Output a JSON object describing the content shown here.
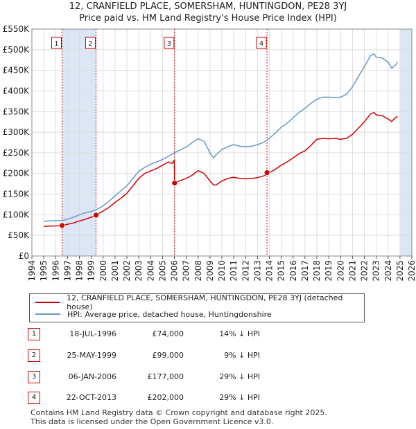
{
  "title_line1": "12, CRANFIELD PLACE, SOMERSHAM, HUNTINGDON, PE28 3YJ",
  "title_line2": "Price paid vs. HM Land Registry's House Price Index (HPI)",
  "colors": {
    "property": "#cc0000",
    "hpi": "#6699cc",
    "shade": "#dde6f5",
    "grid": "#dddddd"
  },
  "chart_data": {
    "type": "line",
    "y_ticks": [
      {
        "v": 0,
        "label": "£0"
      },
      {
        "v": 50000,
        "label": "£50K"
      },
      {
        "v": 100000,
        "label": "£100K"
      },
      {
        "v": 150000,
        "label": "£150K"
      },
      {
        "v": 200000,
        "label": "£200K"
      },
      {
        "v": 250000,
        "label": "£250K"
      },
      {
        "v": 300000,
        "label": "£300K"
      },
      {
        "v": 350000,
        "label": "£350K"
      },
      {
        "v": 400000,
        "label": "£400K"
      },
      {
        "v": 450000,
        "label": "£450K"
      },
      {
        "v": 500000,
        "label": "£500K"
      },
      {
        "v": 550000,
        "label": "£550K"
      }
    ],
    "x_ticks": [
      1994,
      1995,
      1996,
      1997,
      1998,
      1999,
      2000,
      2001,
      2002,
      2003,
      2004,
      2005,
      2006,
      2007,
      2008,
      2009,
      2010,
      2011,
      2012,
      2013,
      2014,
      2015,
      2016,
      2017,
      2018,
      2019,
      2020,
      2021,
      2022,
      2023,
      2024,
      2025,
      2026
    ],
    "xlim": [
      1994,
      2026
    ],
    "ylim": [
      0,
      550000
    ],
    "shaded_ranges": [
      [
        1996.54,
        1999.4
      ],
      [
        2025.0,
        2026.0
      ]
    ],
    "series": [
      {
        "name": "12, CRANFIELD PLACE, SOMERSHAM, HUNTINGDON, PE28 3YJ (detached house)",
        "x": [
          1995.0,
          1995.5,
          1996.0,
          1996.54,
          1997.0,
          1997.5,
          1998.0,
          1998.5,
          1999.0,
          1999.4,
          1999.5,
          2000.0,
          2000.5,
          2001.0,
          2001.5,
          2002.0,
          2002.5,
          2003.0,
          2003.5,
          2004.0,
          2004.5,
          2005.0,
          2005.5,
          2005.8,
          2005.99,
          2006.02,
          2006.5,
          2007.0,
          2007.5,
          2008.0,
          2008.5,
          2009.0,
          2009.3,
          2009.5,
          2010.0,
          2010.5,
          2011.0,
          2011.5,
          2012.0,
          2012.5,
          2013.0,
          2013.5,
          2013.8,
          2014.0,
          2014.5,
          2015.0,
          2015.5,
          2016.0,
          2016.5,
          2017.0,
          2017.5,
          2018.0,
          2018.5,
          2019.0,
          2019.5,
          2020.0,
          2020.5,
          2021.0,
          2021.5,
          2022.0,
          2022.5,
          2022.8,
          2023.0,
          2023.5,
          2024.0,
          2024.3,
          2024.6,
          2024.8
        ],
        "values": [
          72000,
          72500,
          73000,
          74000,
          77000,
          80000,
          85000,
          89000,
          94000,
          99000,
          101000,
          109000,
          118000,
          130000,
          140000,
          152000,
          170000,
          188000,
          200000,
          206000,
          212000,
          220000,
          228000,
          224000,
          232000,
          177000,
          183000,
          188000,
          196000,
          207000,
          200000,
          182000,
          172000,
          172000,
          182000,
          188000,
          191000,
          188000,
          187000,
          188000,
          190000,
          194000,
          198000,
          202000,
          210000,
          220000,
          228000,
          238000,
          248000,
          255000,
          268000,
          283000,
          285000,
          284000,
          285000,
          283000,
          285000,
          295000,
          310000,
          325000,
          344000,
          348000,
          342000,
          340000,
          332000,
          326000,
          335000,
          338000
        ]
      },
      {
        "name": "HPI: Average price, detached house, Huntingdonshire",
        "x": [
          1995.0,
          1995.5,
          1996.0,
          1996.5,
          1997.0,
          1997.5,
          1998.0,
          1998.5,
          1999.0,
          1999.5,
          2000.0,
          2000.5,
          2001.0,
          2001.5,
          2002.0,
          2002.5,
          2003.0,
          2003.5,
          2004.0,
          2004.5,
          2005.0,
          2005.5,
          2006.0,
          2006.5,
          2007.0,
          2007.5,
          2008.0,
          2008.5,
          2009.0,
          2009.3,
          2009.5,
          2010.0,
          2010.5,
          2011.0,
          2011.5,
          2012.0,
          2012.5,
          2013.0,
          2013.5,
          2014.0,
          2014.5,
          2015.0,
          2015.5,
          2016.0,
          2016.5,
          2017.0,
          2017.5,
          2018.0,
          2018.5,
          2019.0,
          2019.5,
          2020.0,
          2020.5,
          2021.0,
          2021.5,
          2022.0,
          2022.5,
          2022.8,
          2023.0,
          2023.5,
          2024.0,
          2024.3,
          2024.6,
          2024.8
        ],
        "values": [
          84000,
          85000,
          85500,
          86000,
          89000,
          94000,
          100000,
          105000,
          108000,
          113000,
          122000,
          133000,
          146000,
          158000,
          170000,
          188000,
          205000,
          215000,
          222000,
          228000,
          234000,
          242000,
          250000,
          257000,
          264000,
          275000,
          284000,
          278000,
          250000,
          238000,
          245000,
          258000,
          265000,
          270000,
          266000,
          265000,
          266000,
          270000,
          275000,
          285000,
          298000,
          312000,
          322000,
          335000,
          348000,
          358000,
          370000,
          380000,
          385000,
          385000,
          384000,
          385000,
          392000,
          410000,
          435000,
          458000,
          485000,
          490000,
          482000,
          480000,
          470000,
          455000,
          462000,
          470000
        ]
      }
    ],
    "transactions": [
      {
        "n": "1",
        "x": 1996.54,
        "value": 74000,
        "date": "18-JUL-1996",
        "price": "£74,000",
        "hpi": "14% ↓ HPI"
      },
      {
        "n": "2",
        "x": 1999.4,
        "value": 99000,
        "date": "25-MAY-1999",
        "price": "£99,000",
        "hpi": "9% ↓ HPI"
      },
      {
        "n": "3",
        "x": 2006.02,
        "value": 177000,
        "date": "06-JAN-2006",
        "price": "£177,000",
        "hpi": "29% ↓ HPI"
      },
      {
        "n": "4",
        "x": 2013.8,
        "value": 202000,
        "date": "22-OCT-2013",
        "price": "£202,000",
        "hpi": "29% ↓ HPI"
      }
    ]
  },
  "legend": {
    "property": "12, CRANFIELD PLACE, SOMERSHAM, HUNTINGDON, PE28 3YJ (detached house)",
    "hpi": "HPI: Average price, detached house, Huntingdonshire"
  },
  "footer_line1": "Contains HM Land Registry data © Crown copyright and database right 2025.",
  "footer_line2": "This data is licensed under the Open Government Licence v3.0."
}
